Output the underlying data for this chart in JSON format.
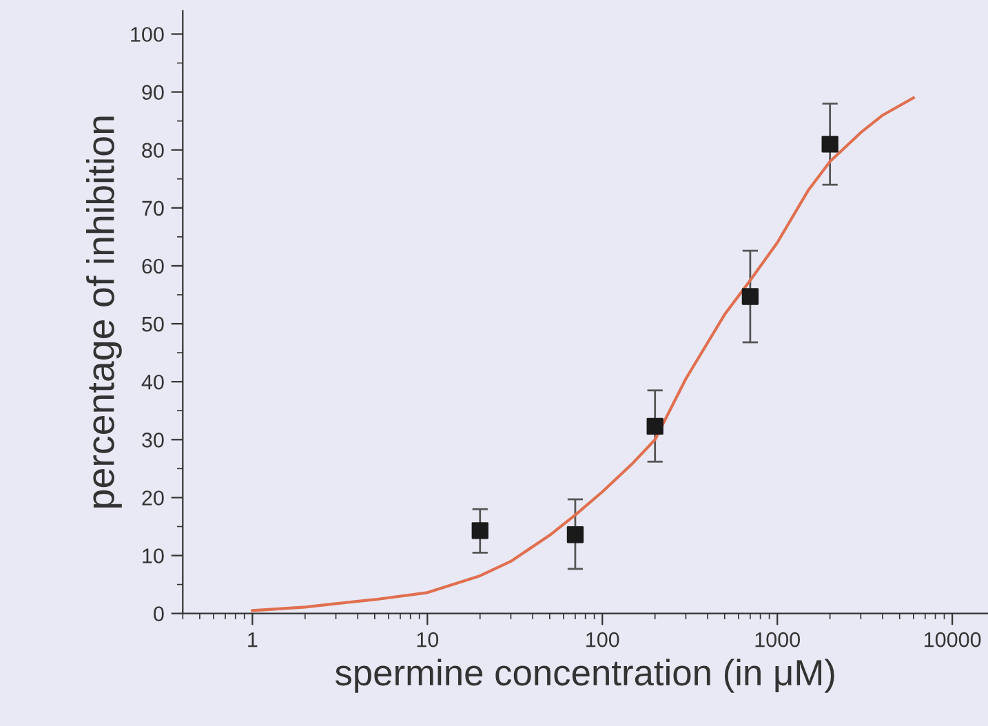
{
  "chart_data": {
    "type": "scatter",
    "xlabel": "spermine concentration (in μM)",
    "ylabel": "percentage of inhibition",
    "log": "x",
    "xlim": [
      0.4,
      16000
    ],
    "xticks": [
      1,
      10,
      100,
      1000,
      10000
    ],
    "ylim": [
      0,
      104
    ],
    "yticks": [
      0,
      10,
      20,
      30,
      40,
      50,
      60,
      70,
      80,
      90,
      100
    ],
    "grid": false,
    "marker": "square",
    "series": [
      {
        "color": "#1a1a1a",
        "x": [
          20,
          70,
          200,
          700,
          2000
        ],
        "values": [
          14.3,
          13.6,
          32.3,
          54.7,
          81.0
        ],
        "errors": [
          [
            10.5,
            18.0
          ],
          [
            7.7,
            19.7
          ],
          [
            26.2,
            38.5
          ],
          [
            46.8,
            62.6
          ],
          [
            74.0,
            88.0
          ]
        ]
      },
      {
        "type": "line",
        "color": "#e07050",
        "marker": "none",
        "line_style": "solid",
        "x": [
          1,
          2,
          3,
          5,
          10,
          20,
          30,
          50,
          70,
          100,
          150,
          200,
          300,
          500,
          700,
          1000,
          1500,
          2000,
          3000,
          4000,
          6000
        ],
        "values": [
          0.5,
          1.1,
          1.7,
          2.4,
          3.6,
          6.5,
          9,
          13.5,
          17,
          21,
          26,
          30,
          40.5,
          51.6,
          57.5,
          64,
          73,
          78,
          83,
          86,
          89
        ]
      }
    ]
  }
}
